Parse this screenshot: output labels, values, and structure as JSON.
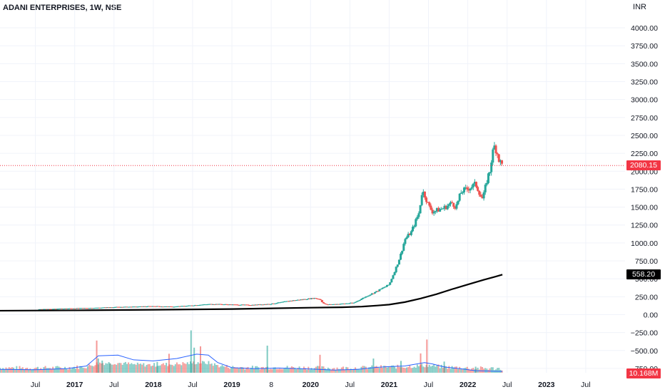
{
  "chart_title": {
    "symbol": "ADANI ENTERPRISES",
    "interval": "1W",
    "exchange": "NSE"
  },
  "currency_label": "INR",
  "last_price_badge": {
    "label": "2080.15",
    "color": "#f23645"
  },
  "ma_badge": {
    "label": "558.20",
    "color": "#000000"
  },
  "volume_badge": {
    "label": "10.168M",
    "color": "#f23645"
  },
  "colors": {
    "up": "#26a69a",
    "down": "#ef5350",
    "ma": "#000000",
    "volume_ma": "#2962ff",
    "price_line": "#f23645",
    "grid": "#f0f3fa"
  },
  "chart_data": {
    "type": "candlestick",
    "symbol": "ADANI ENTERPRISES",
    "interval": "1W",
    "exchange": "NSE",
    "currency": "INR",
    "y_ticks": [
      "4000.00",
      "3750.00",
      "3500.00",
      "3250.00",
      "3000.00",
      "2750.00",
      "2500.00",
      "2250.00",
      "2000.00",
      "1750.00",
      "1500.00",
      "1250.00",
      "1000.00",
      "750.00",
      "500.00",
      "250.00",
      "0.00",
      "−250.00",
      "−500.00",
      "−750.00"
    ],
    "ylim": [
      -880,
      4100
    ],
    "x_ticks": [
      {
        "label": "Jul",
        "t": 2016.5,
        "major": false
      },
      {
        "label": "2017",
        "t": 2017.0,
        "major": true
      },
      {
        "label": "Jul",
        "t": 2017.5,
        "major": false
      },
      {
        "label": "2018",
        "t": 2018.0,
        "major": true
      },
      {
        "label": "Jul",
        "t": 2018.5,
        "major": false
      },
      {
        "label": "2019",
        "t": 2019.0,
        "major": true
      },
      {
        "label": "8",
        "t": 2019.5,
        "major": false
      },
      {
        "label": "2020",
        "t": 2020.0,
        "major": true
      },
      {
        "label": "Jul",
        "t": 2020.5,
        "major": false
      },
      {
        "label": "2021",
        "t": 2021.0,
        "major": true
      },
      {
        "label": "Jul",
        "t": 2021.5,
        "major": false
      },
      {
        "label": "2022",
        "t": 2022.0,
        "major": true
      },
      {
        "label": "Jul",
        "t": 2022.5,
        "major": false
      },
      {
        "label": "2023",
        "t": 2023.0,
        "major": true
      },
      {
        "label": "Jul",
        "t": 2023.5,
        "major": false
      }
    ],
    "xlim": [
      2016.05,
      2024.0
    ],
    "price_path": [
      [
        2016.55,
        75
      ],
      [
        2017.0,
        88
      ],
      [
        2017.3,
        95
      ],
      [
        2017.5,
        105
      ],
      [
        2017.75,
        110
      ],
      [
        2018.0,
        118
      ],
      [
        2018.25,
        110
      ],
      [
        2018.5,
        130
      ],
      [
        2018.75,
        148
      ],
      [
        2019.0,
        140
      ],
      [
        2019.25,
        135
      ],
      [
        2019.5,
        150
      ],
      [
        2019.75,
        195
      ],
      [
        2020.05,
        230
      ],
      [
        2020.12,
        215
      ],
      [
        2020.15,
        170
      ],
      [
        2020.2,
        140
      ],
      [
        2020.35,
        148
      ],
      [
        2020.55,
        165
      ],
      [
        2020.7,
        250
      ],
      [
        2020.85,
        330
      ],
      [
        2021.0,
        420
      ],
      [
        2021.1,
        690
      ],
      [
        2021.15,
        850
      ],
      [
        2021.2,
        1050
      ],
      [
        2021.28,
        1150
      ],
      [
        2021.38,
        1420
      ],
      [
        2021.42,
        1730
      ],
      [
        2021.46,
        1650
      ],
      [
        2021.5,
        1520
      ],
      [
        2021.55,
        1440
      ],
      [
        2021.6,
        1450
      ],
      [
        2021.7,
        1490
      ],
      [
        2021.8,
        1560
      ],
      [
        2021.85,
        1500
      ],
      [
        2021.92,
        1720
      ],
      [
        2021.97,
        1740
      ],
      [
        2022.02,
        1770
      ],
      [
        2022.1,
        1820
      ],
      [
        2022.15,
        1700
      ],
      [
        2022.18,
        1610
      ],
      [
        2022.2,
        1650
      ],
      [
        2022.25,
        1910
      ],
      [
        2022.28,
        2000
      ],
      [
        2022.31,
        2230
      ],
      [
        2022.34,
        2350
      ],
      [
        2022.37,
        2280
      ],
      [
        2022.4,
        2150
      ],
      [
        2022.44,
        2080.15
      ]
    ],
    "ma_path": [
      [
        2016.05,
        55
      ],
      [
        2017.0,
        60
      ],
      [
        2018.0,
        68
      ],
      [
        2019.0,
        78
      ],
      [
        2020.0,
        97
      ],
      [
        2020.4,
        103
      ],
      [
        2020.65,
        112
      ],
      [
        2020.85,
        127
      ],
      [
        2021.0,
        140
      ],
      [
        2021.2,
        175
      ],
      [
        2021.4,
        225
      ],
      [
        2021.6,
        285
      ],
      [
        2021.8,
        355
      ],
      [
        2022.0,
        420
      ],
      [
        2022.2,
        485
      ],
      [
        2022.35,
        530
      ],
      [
        2022.44,
        558.2
      ]
    ],
    "volume_spikes": [
      {
        "t": 2017.28,
        "v": 0.95,
        "color": "down"
      },
      {
        "t": 2017.3,
        "v": 0.42,
        "color": "up"
      },
      {
        "t": 2017.35,
        "v": 0.36,
        "color": "up"
      },
      {
        "t": 2017.45,
        "v": 0.28,
        "color": "up"
      },
      {
        "t": 2018.05,
        "v": 0.32,
        "color": "up"
      },
      {
        "t": 2018.2,
        "v": 0.56,
        "color": "down"
      },
      {
        "t": 2018.48,
        "v": 1.25,
        "color": "up"
      },
      {
        "t": 2018.52,
        "v": 0.74,
        "color": "up"
      },
      {
        "t": 2018.6,
        "v": 0.78,
        "color": "down"
      },
      {
        "t": 2019.45,
        "v": 0.8,
        "color": "up"
      },
      {
        "t": 2020.12,
        "v": 0.53,
        "color": "down"
      },
      {
        "t": 2020.8,
        "v": 0.42,
        "color": "up"
      },
      {
        "t": 2021.15,
        "v": 0.35,
        "color": "up"
      },
      {
        "t": 2021.4,
        "v": 0.57,
        "color": "down"
      },
      {
        "t": 2021.48,
        "v": 0.98,
        "color": "down"
      },
      {
        "t": 2021.7,
        "v": 0.33,
        "color": "up"
      },
      {
        "t": 2022.1,
        "v": 0.18,
        "color": "up"
      }
    ],
    "volume_ma_path": [
      [
        2016.05,
        0.1
      ],
      [
        2016.5,
        0.09
      ],
      [
        2016.9,
        0.12
      ],
      [
        2017.15,
        0.2
      ],
      [
        2017.3,
        0.5
      ],
      [
        2017.55,
        0.52
      ],
      [
        2017.75,
        0.38
      ],
      [
        2018.0,
        0.35
      ],
      [
        2018.3,
        0.42
      ],
      [
        2018.55,
        0.55
      ],
      [
        2018.7,
        0.52
      ],
      [
        2018.82,
        0.3
      ],
      [
        2019.0,
        0.15
      ],
      [
        2019.3,
        0.12
      ],
      [
        2019.6,
        0.14
      ],
      [
        2020.0,
        0.11
      ],
      [
        2020.3,
        0.08
      ],
      [
        2020.6,
        0.1
      ],
      [
        2020.85,
        0.16
      ],
      [
        2021.0,
        0.18
      ],
      [
        2021.2,
        0.2
      ],
      [
        2021.45,
        0.3
      ],
      [
        2021.55,
        0.26
      ],
      [
        2021.7,
        0.17
      ],
      [
        2021.9,
        0.12
      ],
      [
        2022.1,
        0.06
      ],
      [
        2022.44,
        0.04
      ]
    ],
    "last_price": 2080.15,
    "ma_last": 558.2,
    "volume_last": "10.168M"
  }
}
